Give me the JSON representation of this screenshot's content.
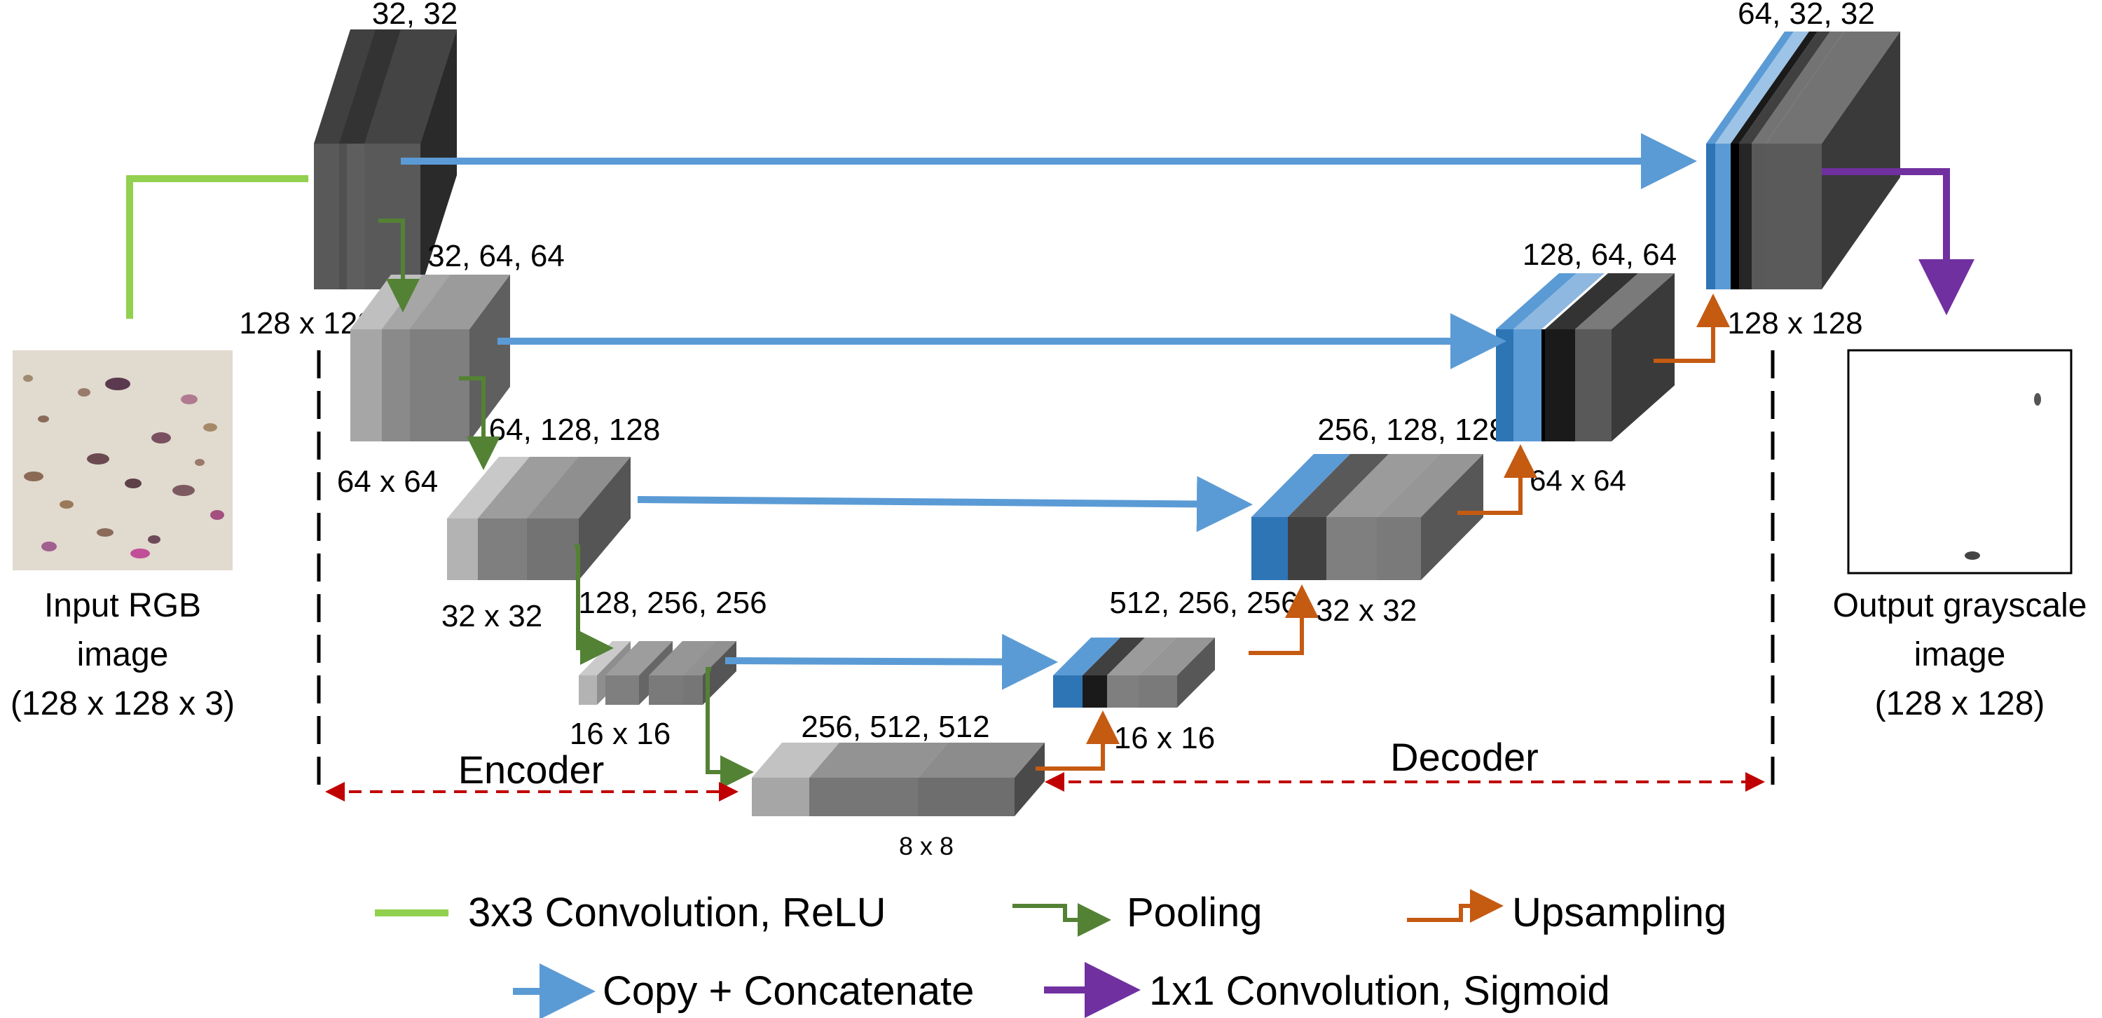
{
  "input": {
    "title": "Input RGB",
    "line2": "image",
    "line3": "(128 x 128 x 3)"
  },
  "output": {
    "title": "Output grayscale",
    "line2": "image",
    "line3": "(128 x 128)"
  },
  "encoder": {
    "block1": {
      "channels": "32, 32",
      "size": "128 x 128"
    },
    "block2": {
      "channels": "32, 64, 64",
      "size": "64 x 64"
    },
    "block3": {
      "channels": "64, 128, 128",
      "size": "32 x 32"
    },
    "block4": {
      "channels": "128, 256, 256",
      "size": "16 x 16"
    }
  },
  "bottleneck": {
    "channels": "256, 512, 512",
    "size": "8 x 8"
  },
  "decoder": {
    "block4": {
      "channels": "512, 256, 256",
      "size": "16 x 16"
    },
    "block3": {
      "channels": "256, 128, 128",
      "size": "32 x 32"
    },
    "block2": {
      "channels": "128, 64, 64",
      "size": "64 x 64"
    },
    "block1": {
      "channels": "64, 32, 32",
      "size": "128 x 128"
    }
  },
  "labels": {
    "encoder": "Encoder",
    "decoder": "Decoder"
  },
  "legend": {
    "conv": "3x3 Convolution, ReLU",
    "pool": "Pooling",
    "up": "Upsampling",
    "copy": "Copy + Concatenate",
    "final": "1x1 Convolution, Sigmoid"
  },
  "colors": {
    "conv": "#92d050",
    "pool": "#548235",
    "up": "#c55a11",
    "copy": "#5b9bd5",
    "final": "#7030a0",
    "span": "#c00000"
  }
}
